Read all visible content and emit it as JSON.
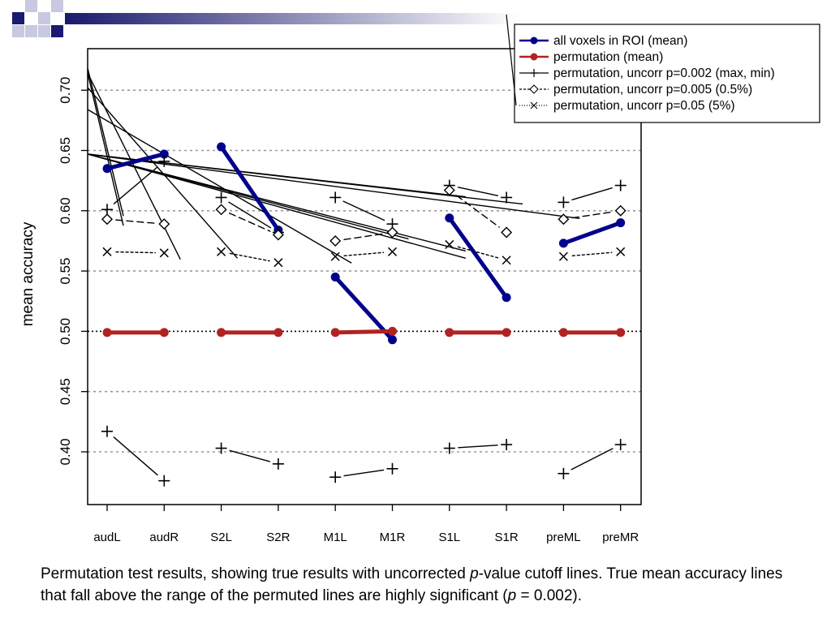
{
  "chart_data": {
    "type": "line",
    "ylabel": "mean accuracy",
    "ylim": [
      0.37,
      0.735
    ],
    "yticks": [
      "0.40",
      "0.45",
      "0.50",
      "0.55",
      "0.60",
      "0.65",
      "0.70"
    ],
    "grid": "horizontal dotted",
    "legend_position": "top-right",
    "categories": [
      "audL",
      "audR",
      "S2L",
      "S2R",
      "M1L",
      "M1R",
      "S1L",
      "S1R",
      "preML",
      "preMR"
    ],
    "pairs": [
      [
        0,
        1
      ],
      [
        2,
        3
      ],
      [
        4,
        5
      ],
      [
        6,
        7
      ],
      [
        8,
        9
      ]
    ],
    "series": [
      {
        "name": "all voxels in ROI (mean)",
        "color": "#00008b",
        "marker": "dot",
        "values": [
          0.635,
          0.647,
          0.653,
          0.584,
          0.545,
          0.493,
          0.594,
          0.528,
          0.573,
          0.59
        ]
      },
      {
        "name": "permutation (mean)",
        "color": "#b22222",
        "marker": "dot",
        "values": [
          0.499,
          0.499,
          0.499,
          0.499,
          0.499,
          0.5,
          0.499,
          0.499,
          0.499,
          0.499
        ]
      },
      {
        "name": "permutation, uncorr p=0.002 (max, min)",
        "color": "#000000",
        "marker": "plus",
        "values": [
          0.601,
          0.641,
          0.611,
          0.582,
          0.611,
          0.589,
          0.621,
          0.611,
          0.607,
          0.621
        ]
      },
      {
        "name": "permutation, uncorr p=0.002 (max, min)",
        "color": "#000000",
        "marker": "plus",
        "legend": false,
        "values": [
          0.417,
          0.376,
          0.403,
          0.39,
          0.379,
          0.386,
          0.403,
          0.406,
          0.382,
          0.406
        ]
      },
      {
        "name": "permutation, uncorr p=0.005 (0.5%)",
        "color": "#000000",
        "marker": "diamond",
        "values": [
          0.593,
          0.589,
          0.601,
          0.58,
          0.575,
          0.582,
          0.617,
          0.582,
          0.593,
          0.6
        ]
      },
      {
        "name": "permutation, uncorr p=0.05 (5%)",
        "color": "#000000",
        "marker": "cross",
        "values": [
          0.566,
          0.565,
          0.566,
          0.557,
          0.562,
          0.566,
          0.572,
          0.559,
          0.562,
          0.566
        ]
      }
    ]
  },
  "caption": {
    "part1": "Permutation test results, showing true results with uncorrected ",
    "p_italic": "p",
    "part2": "-value cutoff lines. True mean accuracy lines that fall above the range of the permuted lines are highly significant (",
    "p_italic_2": "p",
    "part3": " = 0.002)."
  },
  "colors": {
    "deco_navy": "#1a1a6e",
    "deco_light": "#c8c8e0"
  }
}
